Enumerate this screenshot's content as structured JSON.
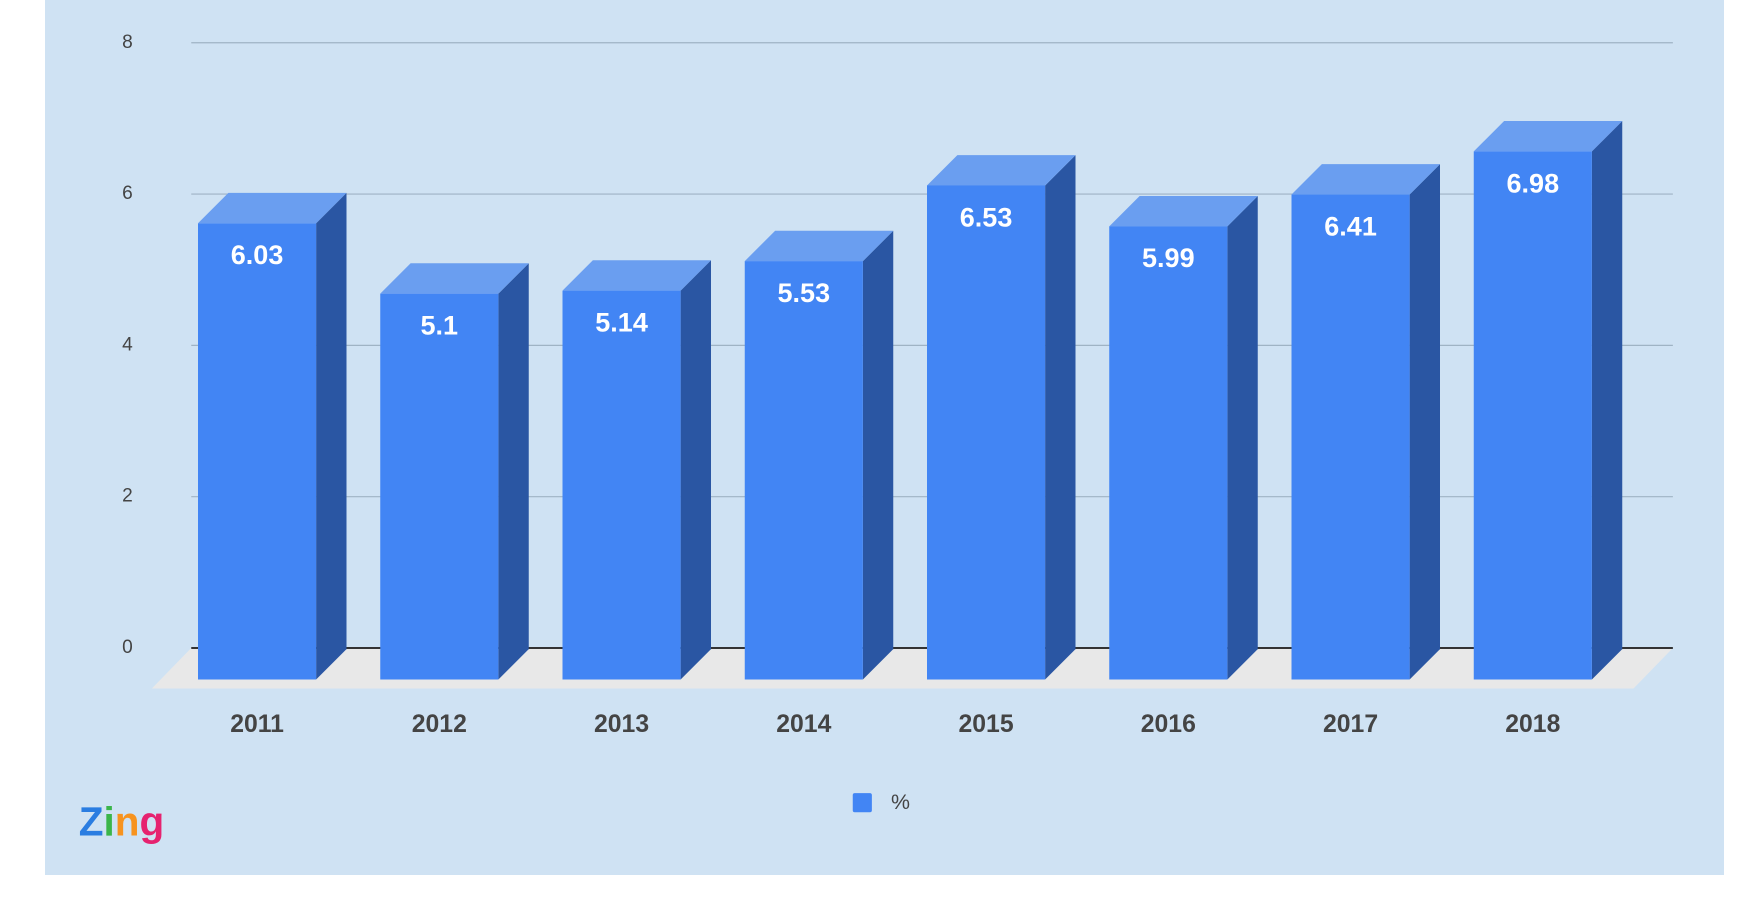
{
  "chart_data": {
    "type": "bar3d",
    "categories": [
      "2011",
      "2012",
      "2013",
      "2014",
      "2015",
      "2016",
      "2017",
      "2018"
    ],
    "series": [
      {
        "name": "%",
        "color": "#4285f4",
        "values": [
          6.03,
          5.1,
          5.14,
          5.53,
          6.53,
          5.99,
          6.41,
          6.98
        ]
      }
    ],
    "ylim": [
      0,
      8
    ],
    "yticks": [
      0,
      2,
      4,
      6,
      8
    ],
    "grid": true,
    "legend": "bottom",
    "logo": "Zing"
  }
}
